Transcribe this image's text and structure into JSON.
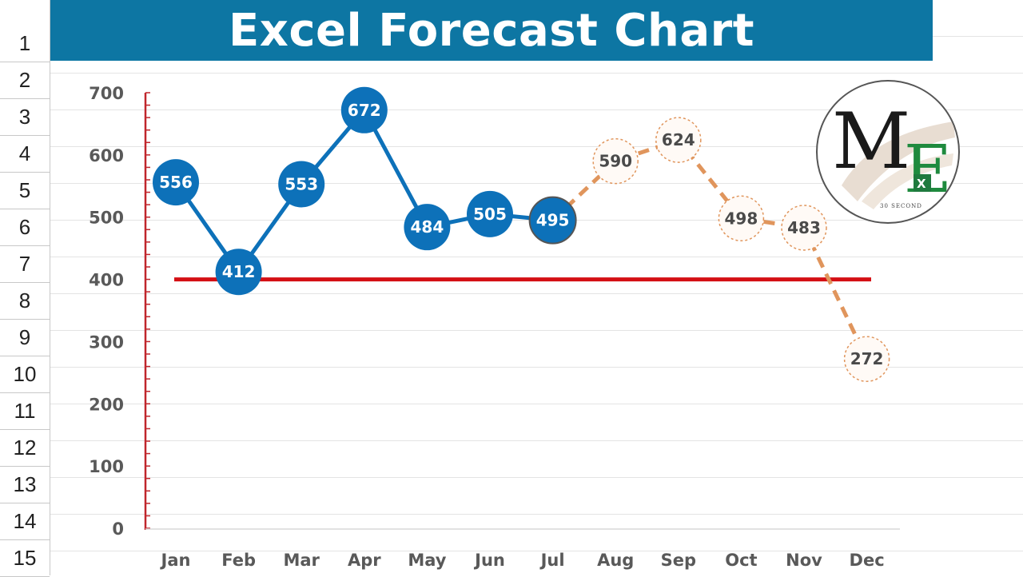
{
  "title": "Excel Forecast Chart",
  "rows": [
    "1",
    "2",
    "3",
    "4",
    "5",
    "6",
    "7",
    "8",
    "9",
    "10",
    "11",
    "12",
    "13",
    "14",
    "15"
  ],
  "logo": {
    "monogram_m": "M",
    "monogram_e": "E",
    "badge": "X",
    "tagline": "30 SECOND"
  },
  "colors": {
    "actual": "#0d71b9",
    "forecast": "#e0955c",
    "threshold": "#d40f14",
    "axis": "#c0262c",
    "header": "#0d76a3"
  },
  "chart_data": {
    "type": "line",
    "title": "Excel Forecast Chart",
    "xlabel": "",
    "ylabel": "",
    "categories": [
      "Jan",
      "Feb",
      "Mar",
      "Apr",
      "May",
      "Jun",
      "Jul",
      "Aug",
      "Sep",
      "Oct",
      "Nov",
      "Dec"
    ],
    "ylim": [
      0,
      700
    ],
    "yticks": [
      "0",
      "100",
      "200",
      "300",
      "400",
      "500",
      "600",
      "700"
    ],
    "grid": false,
    "series": [
      {
        "style": "solid-with-markers",
        "x": [
          "Jan",
          "Feb",
          "Mar",
          "Apr",
          "May",
          "Jun",
          "Jul"
        ],
        "values": [
          556,
          412,
          553,
          672,
          484,
          505,
          495
        ],
        "labels": [
          "556",
          "412",
          "553",
          "672",
          "484",
          "505",
          "495"
        ]
      },
      {
        "style": "dashed-forecast",
        "x": [
          "Jul",
          "Aug",
          "Sep",
          "Oct",
          "Nov",
          "Dec"
        ],
        "values": [
          495,
          590,
          624,
          498,
          483,
          272
        ],
        "labels": [
          "",
          "590",
          "624",
          "498",
          "483",
          "272"
        ]
      }
    ],
    "reference_line": {
      "value": 400
    }
  }
}
